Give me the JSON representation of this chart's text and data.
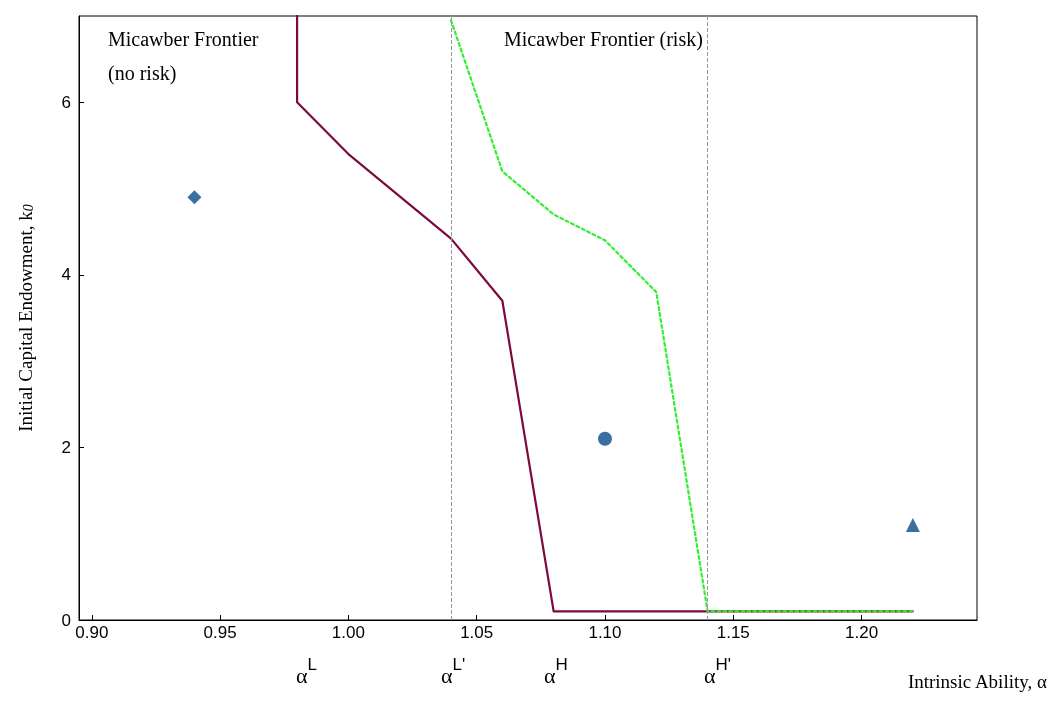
{
  "chart_data": {
    "type": "line",
    "xlabel": "Intrinsic Ability, α",
    "ylabel": "Initial Capital Endowment, k$_{0}$",
    "xlim": [
      0.895,
      1.245
    ],
    "xticks": [
      {
        "value": 0.9,
        "label": "0.90"
      },
      0.95,
      {
        "value": 1.0,
        "label": "1.00"
      },
      1.05,
      {
        "value": 1.1,
        "label": "1.10"
      },
      1.15,
      {
        "value": 1.2,
        "label": "1.20"
      }
    ],
    "ylim": [
      0,
      7
    ],
    "yticks": [
      0,
      2,
      4,
      6
    ],
    "grid": false,
    "series": [
      {
        "type": "line",
        "color": "#7b0a3f",
        "marker": "none",
        "line_style": "solid",
        "x": [
          0.98,
          0.98,
          1.0,
          1.04,
          1.06,
          1.08,
          1.22
        ],
        "values": [
          7,
          6,
          5.4,
          4.42,
          3.7,
          0.1,
          0.1
        ]
      },
      {
        "type": "line",
        "color": "#33ee33",
        "marker": "none",
        "line_style": "dotted",
        "x": [
          1.04,
          1.06,
          1.08,
          1.1,
          1.12,
          1.14,
          1.22
        ],
        "values": [
          6.95,
          5.2,
          4.7,
          4.4,
          3.8,
          0.1,
          0.1
        ]
      },
      {
        "type": "scatter",
        "color": "#0a4a8a",
        "marker": "diamond",
        "x": [
          0.94
        ],
        "values": [
          4.9
        ]
      },
      {
        "type": "scatter",
        "color": "#0a4a8a",
        "marker": "circle",
        "x": [
          1.1
        ],
        "values": [
          2.1
        ]
      },
      {
        "type": "scatter",
        "color": "#0a4a8a",
        "marker": "triangle",
        "x": [
          1.22
        ],
        "values": [
          1.1
        ]
      }
    ],
    "ref_lines": [
      {
        "axis": "x",
        "value": 1.04,
        "color": "#999999",
        "line_style": "dashed"
      },
      {
        "axis": "x",
        "value": 1.14,
        "color": "#999999",
        "line_style": "dashed"
      }
    ],
    "annotations": [
      "Micawber Frontier (no risk)",
      "Micawber Frontier (risk)",
      "α$^{L}$",
      "α$^{L'}$",
      "α$^{H}$",
      "α$^{H'}$"
    ]
  }
}
